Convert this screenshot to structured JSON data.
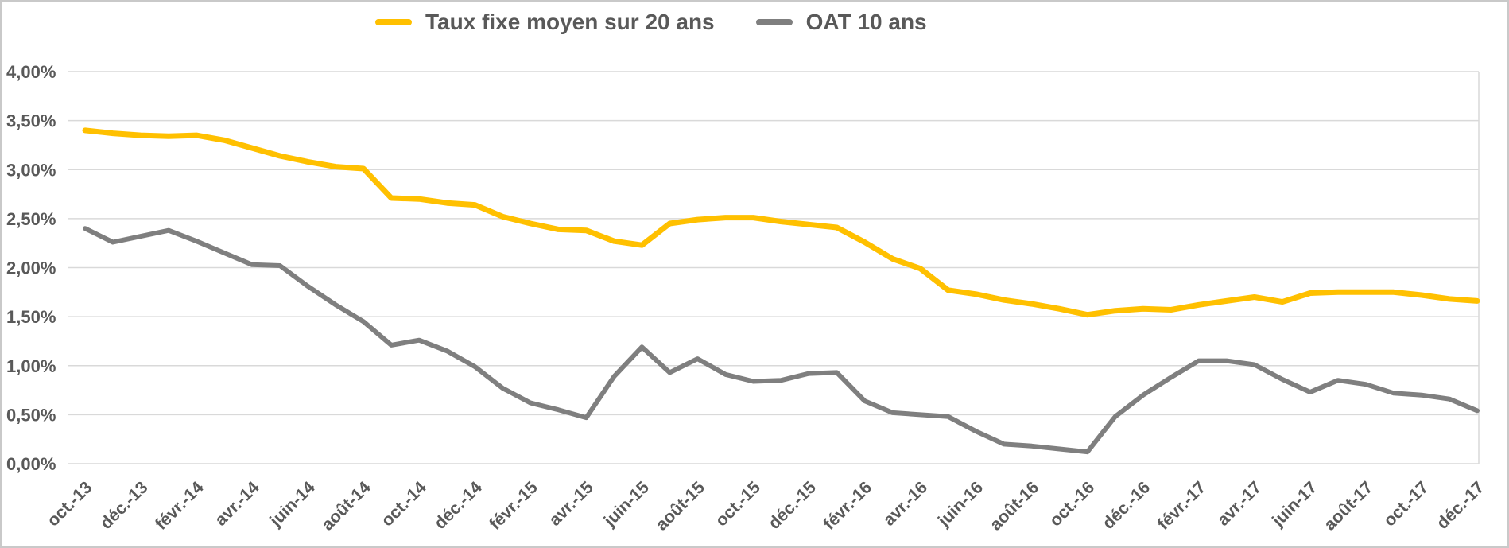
{
  "legend": {
    "items": [
      {
        "label": "Taux fixe moyen sur 20 ans",
        "color": "#FFC000"
      },
      {
        "label": "OAT 10 ans",
        "color": "#7F7F7F"
      }
    ]
  },
  "colors": {
    "background": "#FFFFFF",
    "grid": "#D9D9D9",
    "axis_text": "#595959",
    "outer_border": "#C9C9C9",
    "series_yellow": "#FFC000",
    "series_gray": "#7F7F7F"
  },
  "chart_data": {
    "type": "line",
    "title": "",
    "xlabel": "",
    "ylabel": "",
    "ylim": [
      0,
      4
    ],
    "grid": true,
    "legend_position": "top-center",
    "y_tick_labels": [
      "0,00%",
      "0,50%",
      "1,00%",
      "1,50%",
      "2,00%",
      "2,50%",
      "3,00%",
      "3,50%",
      "4,00%"
    ],
    "x_tick_labels": [
      "oct.-13",
      "déc.-13",
      "févr.-14",
      "avr.-14",
      "juin-14",
      "août-14",
      "oct.-14",
      "déc.-14",
      "févr.-15",
      "avr.-15",
      "juin-15",
      "août-15",
      "oct.-15",
      "déc.-15",
      "févr.-16",
      "avr.-16",
      "juin-16",
      "août-16",
      "oct.-16",
      "déc.-16",
      "févr.-17",
      "avr.-17",
      "juin-17",
      "août-17",
      "oct.-17",
      "déc.-17"
    ],
    "x": [
      "oct.-13",
      "nov.-13",
      "déc.-13",
      "janv.-14",
      "févr.-14",
      "mars-14",
      "avr.-14",
      "mai-14",
      "juin-14",
      "juil.-14",
      "août-14",
      "sept.-14",
      "oct.-14",
      "nov.-14",
      "déc.-14",
      "janv.-15",
      "févr.-15",
      "mars-15",
      "avr.-15",
      "mai-15",
      "juin-15",
      "juil.-15",
      "août-15",
      "sept.-15",
      "oct.-15",
      "nov.-15",
      "déc.-15",
      "janv.-16",
      "févr.-16",
      "mars-16",
      "avr.-16",
      "mai-16",
      "juin-16",
      "juil.-16",
      "août-16",
      "sept.-16",
      "oct.-16",
      "nov.-16",
      "déc.-16",
      "janv.-17",
      "févr.-17",
      "mars-17",
      "avr.-17",
      "mai-17",
      "juin-17",
      "juil.-17",
      "août-17",
      "sept.-17",
      "oct.-17",
      "nov.-17",
      "déc.-17"
    ],
    "series": [
      {
        "name": "Taux fixe moyen sur 20 ans",
        "color": "#FFC000",
        "stroke_width": 7,
        "values": [
          3.4,
          3.37,
          3.35,
          3.34,
          3.35,
          3.3,
          3.22,
          3.14,
          3.08,
          3.03,
          3.01,
          2.71,
          2.7,
          2.66,
          2.64,
          2.52,
          2.45,
          2.39,
          2.38,
          2.27,
          2.23,
          2.45,
          2.49,
          2.51,
          2.51,
          2.47,
          2.44,
          2.41,
          2.26,
          2.09,
          1.99,
          1.77,
          1.73,
          1.67,
          1.63,
          1.58,
          1.52,
          1.56,
          1.58,
          1.57,
          1.62,
          1.66,
          1.7,
          1.65,
          1.74,
          1.75,
          1.75,
          1.75,
          1.72,
          1.68,
          1.66
        ]
      },
      {
        "name": "OAT 10 ans",
        "color": "#7F7F7F",
        "stroke_width": 6,
        "values": [
          2.4,
          2.26,
          2.32,
          2.38,
          2.27,
          2.15,
          2.03,
          2.02,
          1.81,
          1.62,
          1.45,
          1.21,
          1.26,
          1.15,
          0.99,
          0.77,
          0.62,
          0.55,
          0.47,
          0.89,
          1.19,
          0.93,
          1.07,
          0.91,
          0.84,
          0.85,
          0.92,
          0.93,
          0.64,
          0.52,
          0.5,
          0.48,
          0.33,
          0.2,
          0.18,
          0.15,
          0.12,
          0.48,
          0.7,
          0.88,
          1.05,
          1.05,
          1.01,
          0.86,
          0.73,
          0.85,
          0.81,
          0.72,
          0.7,
          0.66,
          0.54
        ]
      }
    ]
  }
}
